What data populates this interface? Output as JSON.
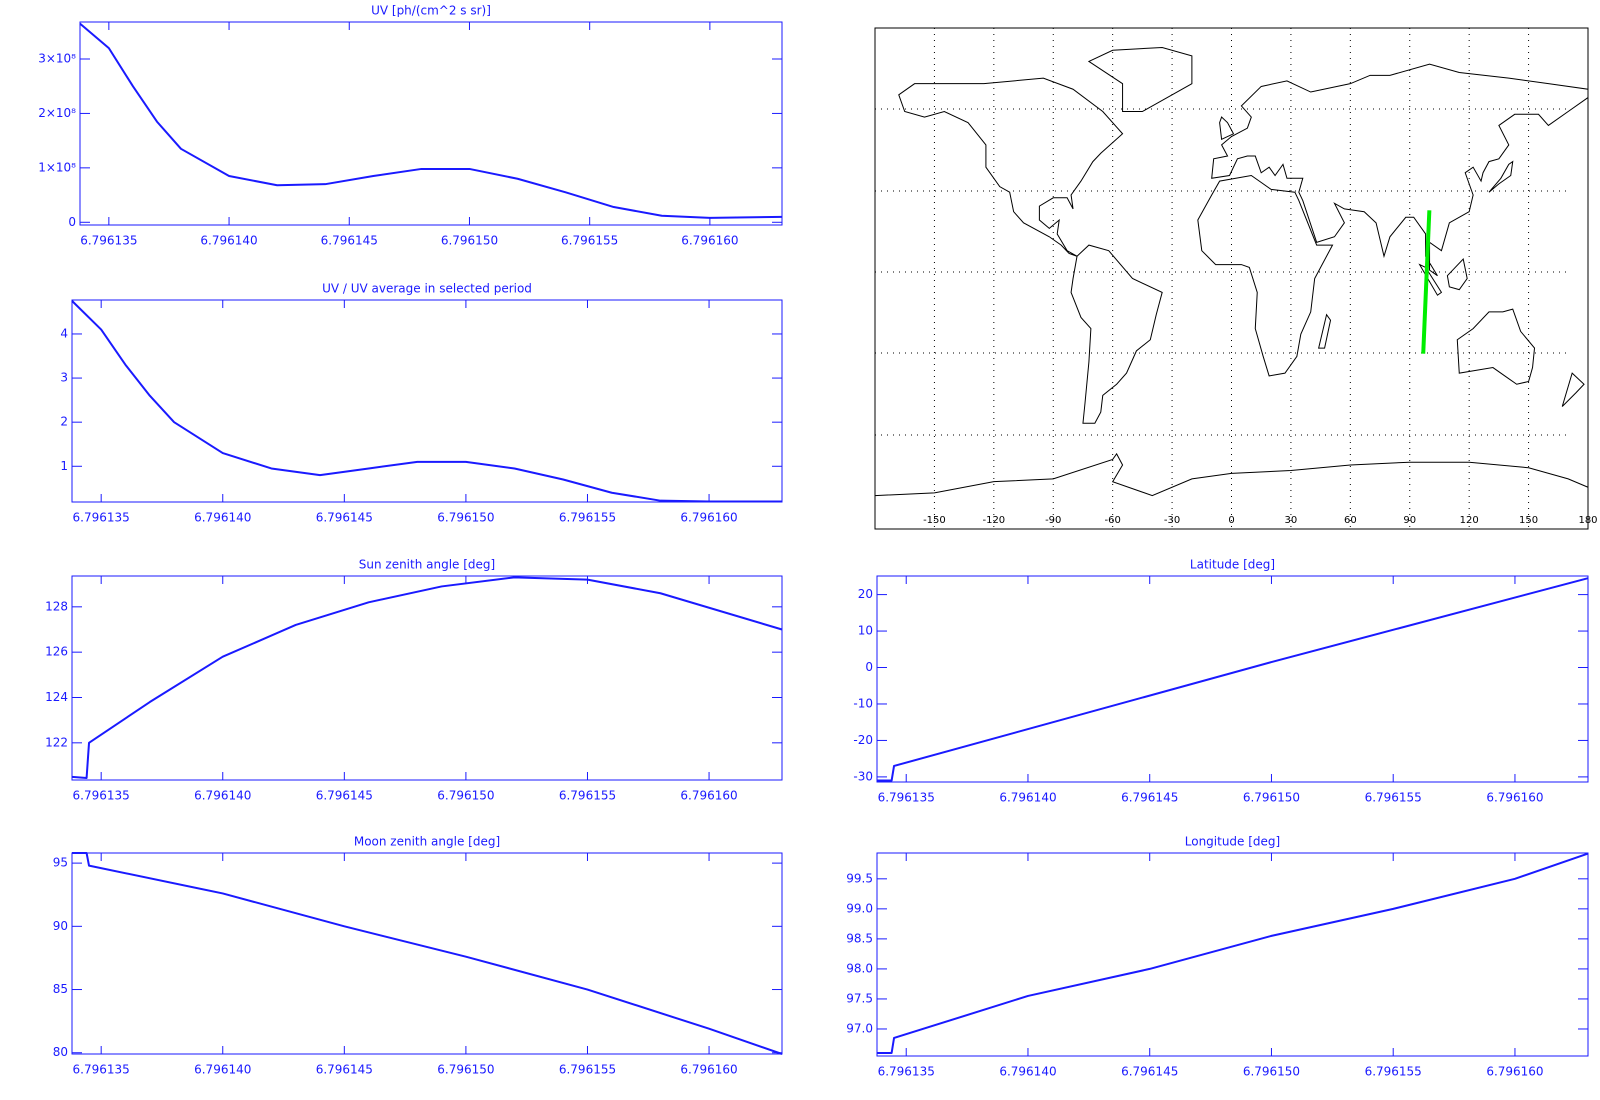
{
  "chart_data": [
    {
      "type": "line",
      "title": "UV [ph/(cm^2 s sr)]",
      "color": "#1a1aff",
      "x": [
        6.7961338,
        6.796135,
        6.796136,
        6.796137,
        6.796138,
        6.79614,
        6.796142,
        6.796144,
        6.796146,
        6.796148,
        6.79615,
        6.796152,
        6.796154,
        6.796156,
        6.796158,
        6.79616,
        6.796163
      ],
      "values": [
        365000000,
        320000000,
        250000000,
        185000000,
        135000000,
        85000000,
        68000000,
        70000000,
        85000000,
        98000000,
        98000000,
        80000000,
        55000000,
        28000000,
        12000000,
        8000000,
        10000000
      ],
      "xlim": [
        6.7961338,
        6.796163
      ],
      "ylim": [
        -5000000,
        368000000
      ],
      "xticks": [
        6.796135,
        {
          "value": 6.79614,
          "label": "6.796140"
        },
        6.796145,
        {
          "value": 6.79615,
          "label": "6.796150"
        },
        6.796155,
        {
          "value": 6.79616,
          "label": "6.796160"
        }
      ],
      "yticks": [
        0,
        {
          "value": 100000000,
          "label": "1×10⁸"
        },
        {
          "value": 200000000,
          "label": "2×10⁸"
        },
        {
          "value": 300000000,
          "label": "3×10⁸"
        }
      ]
    },
    {
      "type": "line",
      "title": "UV / UV average in selected period",
      "color": "#1a1aff",
      "x": [
        6.7961338,
        6.796135,
        6.796136,
        6.796137,
        6.796138,
        6.79614,
        6.796142,
        6.796144,
        6.796146,
        6.796148,
        6.79615,
        6.796152,
        6.796154,
        6.796156,
        6.796158,
        6.79616,
        6.796163
      ],
      "values": [
        4.75,
        4.1,
        3.3,
        2.6,
        2.0,
        1.3,
        0.95,
        0.8,
        0.95,
        1.1,
        1.1,
        0.95,
        0.7,
        0.4,
        0.22,
        0.2,
        0.2
      ],
      "xlim": [
        6.7961338,
        6.796163
      ],
      "ylim": [
        0.19,
        4.77
      ],
      "xticks": [
        6.796135,
        {
          "value": 6.79614,
          "label": "6.796140"
        },
        6.796145,
        {
          "value": 6.79615,
          "label": "6.796150"
        },
        6.796155,
        {
          "value": 6.79616,
          "label": "6.796160"
        }
      ],
      "yticks": [
        1,
        2,
        3,
        4
      ]
    },
    {
      "type": "line",
      "title": "Sun zenith angle [deg]",
      "color": "#1a1aff",
      "x": [
        6.7961338,
        6.7961344,
        6.7961345,
        6.796137,
        6.79614,
        6.796143,
        6.796146,
        6.796149,
        6.796152,
        6.796155,
        6.796158,
        6.796163
      ],
      "values": [
        120.5,
        120.45,
        122.0,
        123.8,
        125.8,
        127.2,
        128.2,
        128.9,
        129.3,
        129.2,
        128.6,
        127.0
      ],
      "xlim": [
        6.7961338,
        6.796163
      ],
      "ylim": [
        120.36,
        129.36
      ],
      "xticks": [
        6.796135,
        {
          "value": 6.79614,
          "label": "6.796140"
        },
        6.796145,
        {
          "value": 6.79615,
          "label": "6.796150"
        },
        6.796155,
        {
          "value": 6.79616,
          "label": "6.796160"
        }
      ],
      "yticks": [
        122,
        124,
        126,
        128
      ]
    },
    {
      "type": "line",
      "title": "Moon zenith angle [deg]",
      "color": "#1a1aff",
      "x": [
        6.7961338,
        6.7961344,
        6.7961345,
        6.79614,
        6.796145,
        6.79615,
        6.796155,
        6.79616,
        6.796163
      ],
      "values": [
        95.8,
        95.8,
        94.8,
        92.6,
        90.0,
        87.6,
        85.0,
        81.9,
        79.9
      ],
      "xlim": [
        6.7961338,
        6.796163
      ],
      "ylim": [
        79.9,
        95.8
      ],
      "xticks": [
        6.796135,
        {
          "value": 6.79614,
          "label": "6.796140"
        },
        6.796145,
        {
          "value": 6.79615,
          "label": "6.796150"
        },
        6.796155,
        {
          "value": 6.79616,
          "label": "6.796160"
        }
      ],
      "yticks": [
        80,
        85,
        90,
        95
      ]
    },
    {
      "type": "map",
      "color": "#00ee00",
      "x": [
        96.8,
        99.9
      ],
      "values": [
        -27,
        24.5
      ],
      "xlim": [
        -180,
        180
      ],
      "ylim": [
        -90,
        90
      ],
      "grid": true,
      "xticks": [
        -150,
        -120,
        -90,
        -60,
        -30,
        0,
        30,
        60,
        90,
        120,
        150,
        180
      ]
    },
    {
      "type": "line",
      "title": "Latitude [deg]",
      "color": "#1a1aff",
      "x": [
        6.7961338,
        6.7961344,
        6.7961345,
        6.79615,
        6.796163
      ],
      "values": [
        -31,
        -31,
        -27,
        1.5,
        24.5
      ],
      "xlim": [
        6.7961338,
        6.796163
      ],
      "ylim": [
        -31.4,
        25.1
      ],
      "xticks": [
        6.796135,
        {
          "value": 6.79614,
          "label": "6.796140"
        },
        6.796145,
        {
          "value": 6.79615,
          "label": "6.796150"
        },
        6.796155,
        {
          "value": 6.79616,
          "label": "6.796160"
        }
      ],
      "yticks": [
        -30,
        -20,
        -10,
        0,
        10,
        20
      ]
    },
    {
      "type": "line",
      "title": "Longitude [deg]",
      "color": "#1a1aff",
      "x": [
        6.7961338,
        6.7961344,
        6.7961345,
        6.79614,
        6.796145,
        6.79615,
        6.796155,
        6.79616,
        6.796163
      ],
      "values": [
        96.6,
        96.6,
        96.85,
        97.55,
        98.0,
        98.55,
        99.0,
        99.5,
        99.92
      ],
      "xlim": [
        6.7961338,
        6.796163
      ],
      "ylim": [
        96.55,
        99.93
      ],
      "xticks": [
        6.796135,
        {
          "value": 6.79614,
          "label": "6.796140"
        },
        6.796145,
        {
          "value": 6.79615,
          "label": "6.796150"
        },
        6.796155,
        {
          "value": 6.79616,
          "label": "6.796160"
        }
      ],
      "yticks": [
        {
          "value": 97,
          "label": "97.0"
        },
        97.5,
        {
          "value": 98,
          "label": "98.0"
        },
        98.5,
        {
          "value": 99,
          "label": "99.0"
        },
        99.5
      ]
    }
  ]
}
